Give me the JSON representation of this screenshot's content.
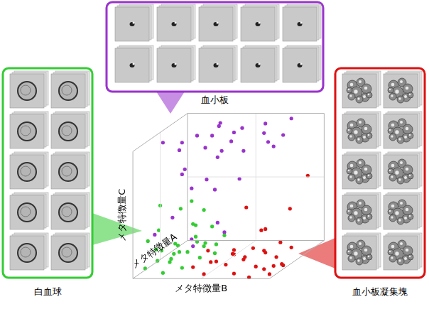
{
  "chart_data": {
    "type": "scatter3d",
    "xlabel": "メタ特徴量A",
    "ylabel": "メタ特徴量B",
    "zlabel": "メタ特徴量C",
    "xlim": [
      0,
      1
    ],
    "ylim": [
      0,
      1
    ],
    "zlim": [
      0,
      1
    ],
    "tick_labels": false,
    "series": [
      {
        "name": "血小板",
        "color": "#9933cc",
        "points": [
          [
            0.1,
            0.3,
            0.98
          ],
          [
            0.2,
            0.45,
            0.97
          ],
          [
            0.3,
            0.6,
            0.99
          ],
          [
            0.15,
            0.75,
            0.96
          ],
          [
            0.5,
            0.9,
            0.98
          ],
          [
            0.6,
            0.5,
            0.97
          ],
          [
            0.7,
            0.35,
            0.99
          ],
          [
            0.4,
            0.2,
            0.95
          ],
          [
            0.8,
            0.65,
            0.98
          ],
          [
            0.9,
            0.8,
            0.99
          ],
          [
            0.25,
            0.55,
            0.93
          ],
          [
            0.35,
            0.85,
            0.97
          ],
          [
            0.55,
            0.25,
            0.96
          ],
          [
            0.65,
            0.7,
            0.95
          ],
          [
            0.45,
            0.4,
            0.99
          ],
          [
            0.05,
            0.6,
            0.94
          ],
          [
            0.75,
            0.5,
            0.96
          ],
          [
            0.2,
            0.95,
            0.98
          ],
          [
            0.85,
            0.3,
            0.97
          ],
          [
            0.3,
            0.1,
            0.98
          ],
          [
            0.2,
            0.3,
            0.8
          ],
          [
            0.4,
            0.2,
            0.7
          ],
          [
            0.5,
            0.4,
            0.55
          ],
          [
            0.1,
            0.25,
            0.45
          ],
          [
            0.6,
            0.3,
            0.6
          ],
          [
            0.3,
            0.5,
            0.35
          ],
          [
            0.7,
            0.15,
            0.5
          ],
          [
            0.2,
            0.35,
            0.25
          ],
          [
            0.45,
            0.6,
            0.65
          ],
          [
            0.15,
            0.1,
            0.3
          ],
          [
            0.55,
            0.45,
            0.2
          ],
          [
            0.35,
            0.3,
            0.15
          ]
        ]
      },
      {
        "name": "白血球",
        "color": "#33cc33",
        "points": [
          [
            0.1,
            0.05,
            0.05
          ],
          [
            0.2,
            0.1,
            0.08
          ],
          [
            0.3,
            0.15,
            0.04
          ],
          [
            0.4,
            0.05,
            0.1
          ],
          [
            0.5,
            0.2,
            0.06
          ],
          [
            0.6,
            0.1,
            0.03
          ],
          [
            0.7,
            0.25,
            0.07
          ],
          [
            0.8,
            0.15,
            0.05
          ],
          [
            0.15,
            0.3,
            0.04
          ],
          [
            0.25,
            0.2,
            0.12
          ],
          [
            0.35,
            0.35,
            0.06
          ],
          [
            0.45,
            0.1,
            0.02
          ],
          [
            0.55,
            0.3,
            0.09
          ],
          [
            0.65,
            0.05,
            0.08
          ],
          [
            0.05,
            0.2,
            0.03
          ],
          [
            0.9,
            0.1,
            0.06
          ],
          [
            0.3,
            0.05,
            0.14
          ],
          [
            0.5,
            0.4,
            0.05
          ],
          [
            0.2,
            0.25,
            0.2
          ],
          [
            0.4,
            0.3,
            0.3
          ],
          [
            0.1,
            0.15,
            0.35
          ],
          [
            0.6,
            0.2,
            0.25
          ],
          [
            0.3,
            0.4,
            0.45
          ],
          [
            0.5,
            0.15,
            0.4
          ],
          [
            0.2,
            0.35,
            0.55
          ],
          [
            0.7,
            0.3,
            0.2
          ],
          [
            0.15,
            0.05,
            0.25
          ],
          [
            0.4,
            0.45,
            0.15
          ],
          [
            0.8,
            0.35,
            0.1
          ],
          [
            0.25,
            0.1,
            0.5
          ]
        ]
      },
      {
        "name": "血小板凝集塊",
        "color": "#dd1111",
        "points": [
          [
            0.05,
            0.5,
            0.02
          ],
          [
            0.1,
            0.7,
            0.01
          ],
          [
            0.15,
            0.9,
            0.03
          ],
          [
            0.2,
            0.6,
            0.05
          ],
          [
            0.25,
            0.8,
            0.02
          ],
          [
            0.3,
            0.45,
            0.04
          ],
          [
            0.35,
            0.95,
            0.01
          ],
          [
            0.4,
            0.65,
            0.03
          ],
          [
            0.45,
            0.55,
            0.06
          ],
          [
            0.5,
            0.85,
            0.02
          ],
          [
            0.55,
            0.75,
            0.04
          ],
          [
            0.6,
            0.5,
            0.01
          ],
          [
            0.65,
            0.9,
            0.05
          ],
          [
            0.7,
            0.6,
            0.03
          ],
          [
            0.0,
            0.85,
            0.01
          ],
          [
            0.05,
            0.98,
            0.02
          ],
          [
            0.1,
            0.4,
            0.06
          ],
          [
            0.2,
            0.95,
            0.04
          ],
          [
            0.3,
            0.7,
            0.08
          ],
          [
            0.4,
            0.8,
            0.1
          ],
          [
            0.5,
            0.35,
            0.07
          ],
          [
            0.15,
            0.55,
            0.09
          ],
          [
            0.25,
            1.0,
            0.03
          ],
          [
            0.35,
            0.6,
            0.12
          ],
          [
            0.45,
            0.9,
            0.15
          ],
          [
            0.6,
            0.7,
            0.2
          ],
          [
            0.3,
            0.85,
            0.3
          ],
          [
            0.5,
            0.95,
            0.4
          ],
          [
            0.2,
            0.75,
            0.5
          ],
          [
            0.7,
            1.0,
            0.6
          ]
        ]
      }
    ]
  }
}
